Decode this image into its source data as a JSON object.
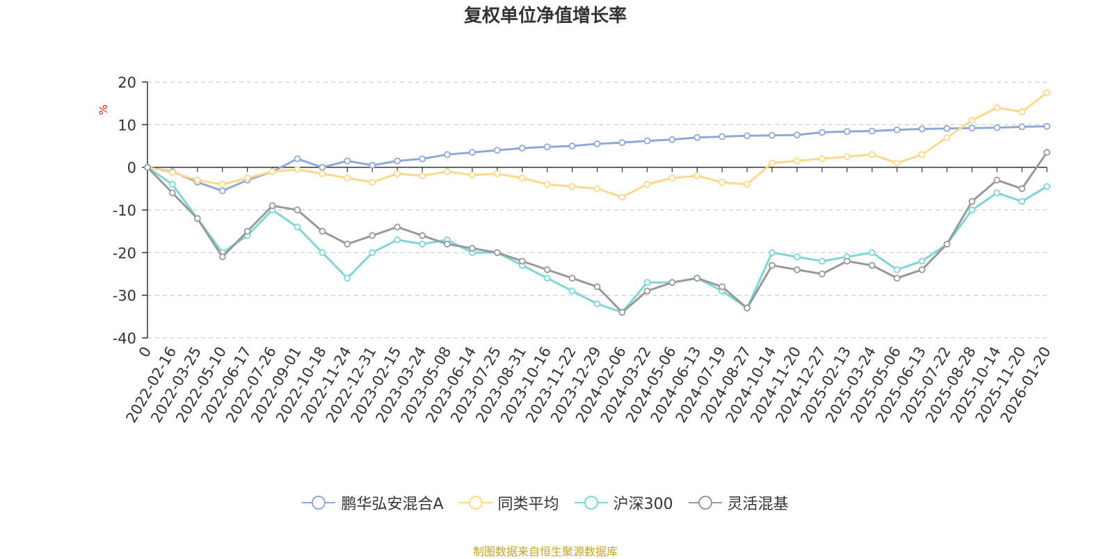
{
  "chart_data": {
    "type": "line",
    "title": "复权单位净值增长率",
    "ylabel": "%",
    "ylim": [
      -40,
      20
    ],
    "yticks": [
      20,
      10,
      0,
      -10,
      -20,
      -30,
      -40
    ],
    "grid": true,
    "legend_position": "bottom-center",
    "x_tick_labels": [
      "0",
      "2022-02-16",
      "2022-03-25",
      "2022-05-10",
      "2022-06-17",
      "2022-07-26",
      "2022-09-01",
      "2022-10-18",
      "2022-11-24",
      "2022-12-31",
      "2023-02-15",
      "2023-03-24",
      "2023-05-08",
      "2023-06-14",
      "2023-07-25",
      "2023-08-31",
      "2023-10-16",
      "2023-11-22",
      "2023-12-29",
      "2024-02-06",
      "2024-03-22",
      "2024-05-06",
      "2024-06-13",
      "2024-07-19",
      "2024-08-27",
      "2024-10-14",
      "2024-11-20",
      "2024-12-27",
      "2025-02-13",
      "2025-03-24",
      "2025-05-06",
      "2025-06-13",
      "2025-07-22",
      "2025-08-28",
      "2025-10-14",
      "2025-11-20",
      "2026-01-20"
    ],
    "series": [
      {
        "name": "鹏华弘安混合A",
        "color": "#8ea9d8",
        "values": [
          0,
          -1,
          -3.5,
          -5.5,
          -3,
          -1,
          2,
          0,
          1.5,
          0.5,
          1.5,
          2,
          3,
          3.5,
          4,
          4.5,
          4.8,
          5,
          5.5,
          5.8,
          6.2,
          6.5,
          7,
          7.2,
          7.4,
          7.5,
          7.6,
          8.2,
          8.4,
          8.5,
          8.8,
          9,
          9.1,
          9.2,
          9.3,
          9.5,
          9.6
        ]
      },
      {
        "name": "同类平均",
        "color": "#ffd88c",
        "values": [
          0,
          -1.2,
          -3,
          -4,
          -2.5,
          -1,
          -0.5,
          -1.5,
          -2.5,
          -3.5,
          -1.5,
          -2,
          -1,
          -1.8,
          -1.5,
          -2.5,
          -4,
          -4.5,
          -5,
          -7,
          -4,
          -2.5,
          -2,
          -3.5,
          -4,
          1,
          1.5,
          2,
          2.5,
          3,
          1,
          3,
          7,
          11,
          14,
          13,
          17.5
        ]
      },
      {
        "name": "沪深300",
        "color": "#7fd6d8",
        "values": [
          0,
          -4,
          -12,
          -20,
          -16,
          -10,
          -14,
          -20,
          -26,
          -20,
          -17,
          -18,
          -17,
          -20,
          -20,
          -23,
          -26,
          -29,
          -32,
          -34,
          -27,
          -27,
          -26,
          -29,
          -33,
          -20,
          -21,
          -22,
          -21,
          -20,
          -24,
          -22,
          -18,
          -10,
          -6,
          -8,
          -4.5
        ]
      },
      {
        "name": "灵活混基",
        "color": "#999999",
        "values": [
          0,
          -6,
          -12,
          -21,
          -15,
          -9,
          -10,
          -15,
          -18,
          -16,
          -14,
          -16,
          -18,
          -19,
          -20,
          -22,
          -24,
          -26,
          -28,
          -34,
          -29,
          -27,
          -26,
          -28,
          -33,
          -23,
          -24,
          -25,
          -22,
          -23,
          -26,
          -24,
          -18,
          -8,
          -3,
          -5,
          3.5
        ]
      }
    ]
  },
  "legend": [
    "鹏华弘安混合A",
    "同类平均",
    "沪深300",
    "灵活混基"
  ],
  "source": "制图数据来自恒生聚源数据库"
}
